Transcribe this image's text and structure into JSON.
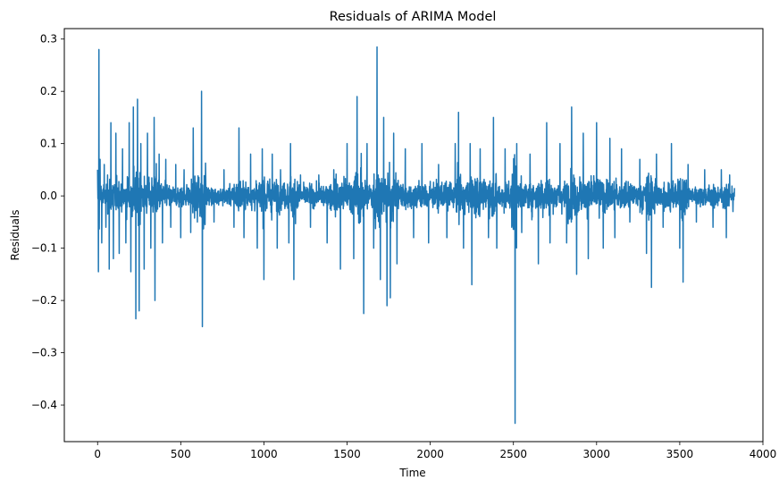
{
  "chart_data": {
    "type": "line",
    "title": "Residuals of ARIMA Model",
    "xlabel": "Time",
    "ylabel": "Residuals",
    "xlim": [
      -200,
      4000
    ],
    "ylim": [
      -0.47,
      0.32
    ],
    "x_ticks": [
      0,
      500,
      1000,
      1500,
      2000,
      2500,
      3000,
      3500,
      4000
    ],
    "x_tick_labels": [
      "0",
      "500",
      "1000",
      "1500",
      "2000",
      "2500",
      "3000",
      "3500",
      "4000"
    ],
    "y_ticks": [
      0.3,
      0.2,
      0.1,
      0.0,
      -0.1,
      -0.2,
      -0.3,
      -0.4
    ],
    "y_tick_labels": [
      "0.3",
      "0.2",
      "0.1",
      "0.0",
      "−0.1",
      "−0.2",
      "−0.3",
      "−0.4"
    ],
    "grid": false,
    "series": [
      {
        "color": "#1f77b4",
        "n_points": 3830,
        "points": [
          [
            0,
            0.05
          ],
          [
            5,
            -0.145
          ],
          [
            8,
            0.28
          ],
          [
            15,
            0.07
          ],
          [
            25,
            -0.09
          ],
          [
            40,
            0.06
          ],
          [
            50,
            -0.06
          ],
          [
            60,
            0.04
          ],
          [
            70,
            -0.14
          ],
          [
            80,
            0.14
          ],
          [
            95,
            -0.12
          ],
          [
            110,
            0.12
          ],
          [
            130,
            -0.11
          ],
          [
            150,
            0.09
          ],
          [
            170,
            -0.09
          ],
          [
            190,
            0.14
          ],
          [
            200,
            -0.145
          ],
          [
            215,
            0.17
          ],
          [
            230,
            -0.235
          ],
          [
            240,
            0.185
          ],
          [
            250,
            -0.22
          ],
          [
            260,
            0.1
          ],
          [
            280,
            -0.14
          ],
          [
            300,
            0.12
          ],
          [
            320,
            -0.1
          ],
          [
            340,
            0.15
          ],
          [
            345,
            -0.2
          ],
          [
            370,
            0.08
          ],
          [
            390,
            -0.09
          ],
          [
            410,
            0.07
          ],
          [
            440,
            -0.06
          ],
          [
            470,
            0.06
          ],
          [
            500,
            -0.08
          ],
          [
            520,
            0.05
          ],
          [
            560,
            -0.07
          ],
          [
            575,
            0.13
          ],
          [
            600,
            -0.05
          ],
          [
            625,
            0.2
          ],
          [
            630,
            -0.25
          ],
          [
            650,
            0.04
          ],
          [
            700,
            -0.05
          ],
          [
            760,
            0.05
          ],
          [
            820,
            -0.06
          ],
          [
            850,
            0.13
          ],
          [
            880,
            -0.08
          ],
          [
            920,
            0.08
          ],
          [
            960,
            -0.1
          ],
          [
            990,
            0.09
          ],
          [
            1000,
            -0.16
          ],
          [
            1050,
            0.08
          ],
          [
            1080,
            -0.1
          ],
          [
            1100,
            0.05
          ],
          [
            1150,
            -0.09
          ],
          [
            1160,
            0.1
          ],
          [
            1180,
            -0.16
          ],
          [
            1220,
            0.04
          ],
          [
            1280,
            -0.06
          ],
          [
            1330,
            0.04
          ],
          [
            1380,
            -0.09
          ],
          [
            1420,
            0.05
          ],
          [
            1460,
            -0.14
          ],
          [
            1500,
            0.1
          ],
          [
            1540,
            -0.12
          ],
          [
            1560,
            0.19
          ],
          [
            1580,
            -0.05
          ],
          [
            1600,
            -0.225
          ],
          [
            1620,
            0.1
          ],
          [
            1660,
            -0.1
          ],
          [
            1680,
            0.285
          ],
          [
            1700,
            -0.16
          ],
          [
            1720,
            0.15
          ],
          [
            1740,
            -0.21
          ],
          [
            1760,
            -0.195
          ],
          [
            1780,
            0.12
          ],
          [
            1800,
            -0.13
          ],
          [
            1850,
            0.09
          ],
          [
            1900,
            -0.08
          ],
          [
            1950,
            0.1
          ],
          [
            1990,
            -0.09
          ],
          [
            2050,
            0.06
          ],
          [
            2100,
            -0.08
          ],
          [
            2150,
            0.1
          ],
          [
            2170,
            0.16
          ],
          [
            2200,
            -0.1
          ],
          [
            2240,
            0.1
          ],
          [
            2250,
            -0.17
          ],
          [
            2300,
            0.09
          ],
          [
            2350,
            -0.08
          ],
          [
            2380,
            0.15
          ],
          [
            2400,
            -0.1
          ],
          [
            2450,
            0.09
          ],
          [
            2490,
            -0.06
          ],
          [
            2510,
            -0.435
          ],
          [
            2520,
            0.1
          ],
          [
            2550,
            -0.07
          ],
          [
            2600,
            0.08
          ],
          [
            2650,
            -0.13
          ],
          [
            2700,
            0.14
          ],
          [
            2720,
            -0.09
          ],
          [
            2780,
            0.1
          ],
          [
            2820,
            -0.09
          ],
          [
            2850,
            0.17
          ],
          [
            2880,
            -0.15
          ],
          [
            2920,
            0.12
          ],
          [
            2950,
            -0.12
          ],
          [
            3000,
            0.14
          ],
          [
            3040,
            -0.1
          ],
          [
            3080,
            0.11
          ],
          [
            3110,
            -0.08
          ],
          [
            3150,
            0.09
          ],
          [
            3200,
            -0.05
          ],
          [
            3260,
            0.07
          ],
          [
            3300,
            -0.11
          ],
          [
            3330,
            -0.175
          ],
          [
            3360,
            0.08
          ],
          [
            3400,
            -0.06
          ],
          [
            3450,
            0.1
          ],
          [
            3500,
            -0.1
          ],
          [
            3520,
            -0.165
          ],
          [
            3550,
            0.06
          ],
          [
            3600,
            -0.05
          ],
          [
            3650,
            0.05
          ],
          [
            3700,
            -0.06
          ],
          [
            3750,
            0.05
          ],
          [
            3780,
            -0.08
          ],
          [
            3800,
            0.04
          ],
          [
            3820,
            -0.03
          ],
          [
            3830,
            0.015
          ]
        ]
      }
    ]
  }
}
